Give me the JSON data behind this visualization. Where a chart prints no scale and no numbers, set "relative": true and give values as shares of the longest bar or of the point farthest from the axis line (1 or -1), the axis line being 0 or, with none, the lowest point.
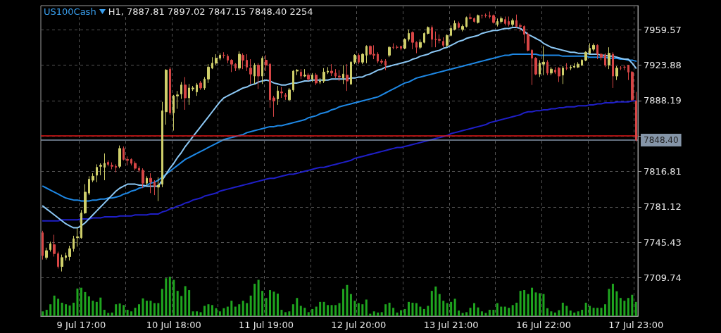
{
  "chart_data": [
    {
      "type": "candlestick",
      "title": "US100Cash",
      "subtitle": "H1, 7887.81 7897.02 7847.15 7848.40 2254",
      "categories": [
        null,
        null,
        null,
        null,
        null,
        null,
        null,
        null,
        null,
        null,
        "9 Jul 17:00",
        null,
        null,
        null,
        null,
        null,
        null,
        null,
        null,
        null,
        null,
        null,
        null,
        null,
        null,
        null,
        null,
        null,
        null,
        null,
        null,
        null,
        null,
        null,
        "10 Jul 18:00",
        null,
        null,
        null,
        null,
        null,
        null,
        null,
        null,
        null,
        null,
        null,
        null,
        null,
        null,
        null,
        null,
        null,
        null,
        null,
        null,
        null,
        null,
        null,
        "11 Jul 19:00",
        null,
        null,
        null,
        null,
        null,
        null,
        null,
        null,
        null,
        null,
        null,
        null,
        null,
        null,
        null,
        null,
        null,
        null,
        null,
        null,
        null,
        null,
        null,
        "12 Jul 20:00",
        null,
        null,
        null,
        null,
        null,
        null,
        null,
        null,
        null,
        null,
        null,
        null,
        null,
        null,
        null,
        null,
        null,
        null,
        null,
        null,
        null,
        null,
        null,
        "13 Jul 21:00",
        null,
        null,
        null,
        null,
        null,
        null,
        null,
        null,
        null,
        null,
        null,
        null,
        null,
        null,
        null,
        null,
        null,
        null,
        null,
        null,
        null,
        null,
        null,
        "16 Jul 22:00",
        null,
        null,
        null,
        null,
        null,
        null,
        null,
        null,
        null,
        null,
        null,
        null,
        null,
        null,
        null,
        null,
        null,
        null,
        null,
        null,
        null,
        null,
        null,
        "17 Jul 23:00"
      ],
      "series": [
        {
          "type": "line",
          "color": "#1f1fc8",
          "values": [
            7767,
            7767,
            7767,
            7767,
            7767,
            7768,
            7768,
            7768,
            7768,
            7768,
            7769,
            7769,
            7769,
            7770,
            7770,
            7770,
            7771,
            7771,
            7771,
            7771,
            7772,
            7772,
            7772,
            7772,
            7773,
            7773,
            7773,
            7773,
            7774,
            7774,
            7774,
            7776,
            7777,
            7779,
            7780,
            7782,
            7783,
            7785,
            7786,
            7788,
            7789,
            7790,
            7792,
            7793,
            7794,
            7795,
            7797,
            7798,
            7799,
            7800,
            7801,
            7802,
            7803,
            7804,
            7805,
            7806,
            7807,
            7808,
            7809,
            7810,
            7810,
            7811,
            7812,
            7813,
            7814,
            7814,
            7815,
            7816,
            7817,
            7818,
            7819,
            7820,
            7821,
            7821,
            7822,
            7823,
            7824,
            7825,
            7826,
            7827,
            7828,
            7830,
            7831,
            7832,
            7833,
            7834,
            7835,
            7836,
            7837,
            7838,
            7839,
            7840,
            7841,
            7841,
            7842,
            7843,
            7844,
            7845,
            7846,
            7847,
            7848,
            7849,
            7850,
            7851,
            7852,
            7853,
            7855,
            7856,
            7857,
            7858,
            7859,
            7860,
            7861,
            7862,
            7863,
            7864,
            7866,
            7867,
            7868,
            7869,
            7870,
            7871,
            7872,
            7873,
            7874,
            7876,
            7877,
            7877,
            7878,
            7878,
            7879,
            7879,
            7880,
            7880,
            7881,
            7881,
            7882,
            7882,
            7882,
            7883,
            7883,
            7883,
            7884,
            7884,
            7885,
            7885,
            7886,
            7886,
            7886,
            7887,
            7887,
            7887,
            7887,
            7888,
            7888
          ]
        },
        {
          "type": "line",
          "color": "#1e88e5",
          "values": [
            7802,
            7800,
            7798,
            7796,
            7794,
            7792,
            7790,
            7789,
            7788,
            7788,
            7787,
            7787,
            7787,
            7788,
            7788,
            7789,
            7789,
            7790,
            7790,
            7791,
            7792,
            7794,
            7795,
            7797,
            7798,
            7800,
            7801,
            7803,
            7805,
            7806,
            7808,
            7811,
            7814,
            7817,
            7820,
            7823,
            7826,
            7829,
            7831,
            7833,
            7835,
            7837,
            7839,
            7841,
            7843,
            7845,
            7847,
            7849,
            7850,
            7851,
            7852,
            7853,
            7854,
            7856,
            7857,
            7858,
            7859,
            7860,
            7861,
            7862,
            7862,
            7863,
            7863,
            7864,
            7865,
            7866,
            7867,
            7868,
            7869,
            7871,
            7872,
            7873,
            7875,
            7876,
            7877,
            7879,
            7880,
            7882,
            7883,
            7884,
            7885,
            7886,
            7887,
            7888,
            7889,
            7890,
            7891,
            7892,
            7894,
            7896,
            7898,
            7900,
            7902,
            7904,
            7906,
            7907,
            7909,
            7911,
            7912,
            7913,
            7914,
            7915,
            7916,
            7917,
            7918,
            7919,
            7920,
            7921,
            7922,
            7923,
            7924,
            7925,
            7926,
            7927,
            7928,
            7929,
            7930,
            7931,
            7932,
            7933,
            7934,
            7934,
            7935,
            7935,
            7935,
            7935,
            7935,
            7935,
            7935,
            7934,
            7934,
            7934,
            7934,
            7934,
            7934,
            7933,
            7933,
            7933,
            7933,
            7933,
            7933,
            7933,
            7932,
            7932,
            7932,
            7932,
            7932,
            7931,
            7931,
            7931,
            7930,
            7930,
            7929,
            7929,
            7928
          ]
        },
        {
          "type": "line",
          "color": "#8cc8f5",
          "values": [
            7782,
            7779,
            7776,
            7773,
            7770,
            7767,
            7764,
            7762,
            7760,
            7760,
            7762,
            7765,
            7769,
            7773,
            7777,
            7781,
            7785,
            7789,
            7793,
            7797,
            7800,
            7802,
            7804,
            7804,
            7804,
            7803,
            7803,
            7802,
            7802,
            7802,
            7802,
            7808,
            7814,
            7820,
            7825,
            7831,
            7836,
            7842,
            7847,
            7852,
            7857,
            7862,
            7867,
            7872,
            7877,
            7882,
            7887,
            7891,
            7893,
            7895,
            7897,
            7899,
            7901,
            7902,
            7904,
            7905,
            7907,
            7908,
            7909,
            7908,
            7906,
            7905,
            7904,
            7904,
            7905,
            7906,
            7906,
            7907,
            7908,
            7908,
            7909,
            7909,
            7909,
            7909,
            7909,
            7910,
            7910,
            7910,
            7910,
            7910,
            7911,
            7911,
            7912,
            7912,
            7914,
            7915,
            7917,
            7919,
            7920,
            7922,
            7923,
            7924,
            7925,
            7926,
            7927,
            7928,
            7930,
            7931,
            7933,
            7934,
            7935,
            7937,
            7938,
            7939,
            7941,
            7942,
            7944,
            7946,
            7948,
            7949,
            7951,
            7952,
            7953,
            7954,
            7956,
            7957,
            7958,
            7959,
            7959,
            7960,
            7961,
            7961,
            7962,
            7962,
            7961,
            7958,
            7955,
            7953,
            7951,
            7949,
            7946,
            7944,
            7942,
            7941,
            7940,
            7939,
            7938,
            7937,
            7937,
            7936,
            7936,
            7936,
            7935,
            7935,
            7935,
            7934,
            7934,
            7933,
            7933,
            7932,
            7931,
            7930,
            7930,
            7926,
            7921
          ]
        },
        {
          "type": "candlestick",
          "colors": [
            "#d64545",
            "#cfcf6a",
            "#cfcf6a",
            "#d64545",
            "#d64545",
            "#cfcf6a",
            "#cfcf6a",
            "#cfcf6a",
            "#cfcf6a",
            "#cfcf6a",
            "#cfcf6a",
            "#cfcf6a",
            "#cfcf6a",
            "#cfcf6a",
            "#cfcf6a",
            "#cfcf6a",
            "#cfcf6a",
            "#d64545",
            "#d64545",
            "#d64545",
            "#cfcf6a",
            "#d64545",
            "#d64545",
            "#d64545",
            "#d64545",
            "#d64545",
            "#d64545",
            "#cfcf6a",
            "#d64545",
            "#d64545",
            "#cfcf6a",
            "#cfcf6a",
            "#cfcf6a",
            "#d64545",
            "#cfcf6a",
            "#cfcf6a",
            "#cfcf6a",
            "#d64545",
            "#cfcf6a",
            "#cfcf6a",
            "#cfcf6a",
            "#d64545",
            "#cfcf6a",
            "#cfcf6a",
            "#cfcf6a",
            "#cfcf6a",
            "#cfcf6a",
            "#d64545",
            "#d64545",
            "#d64545",
            "#d64545",
            "#cfcf6a",
            "#d64545",
            "#d64545",
            "#d64545",
            "#cfcf6a",
            "#d64545",
            "#cfcf6a",
            "#d64545",
            "#d64545",
            "#d64545",
            "#cfcf6a",
            "#d64545",
            "#d64545",
            "#cfcf6a",
            "#cfcf6a",
            "#cfcf6a",
            "#d64545",
            "#cfcf6a",
            "#d64545",
            "#cfcf6a",
            "#d64545",
            "#cfcf6a",
            "#cfcf6a",
            "#cfcf6a",
            "#d64545",
            "#d64545",
            "#d64545",
            "#cfcf6a",
            "#d64545",
            "#cfcf6a",
            "#cfcf6a",
            "#d64545",
            "#cfcf6a",
            "#cfcf6a",
            "#d64545",
            "#d64545",
            "#d64545",
            "#d64545",
            "#d64545",
            "#cfcf6a",
            "#d64545",
            "#d64545",
            "#d64545",
            "#cfcf6a",
            "#cfcf6a",
            "#d64545",
            "#d64545",
            "#cfcf6a",
            "#cfcf6a",
            "#cfcf6a",
            "#d64545",
            "#d64545",
            "#d64545",
            "#d64545",
            "#cfcf6a",
            "#cfcf6a",
            "#cfcf6a",
            "#d64545",
            "#cfcf6a",
            "#cfcf6a",
            "#d64545",
            "#d64545",
            "#cfcf6a",
            "#d64545",
            "#d64545",
            "#d64545",
            "#d64545",
            "#cfcf6a",
            "#cfcf6a",
            "#d64545",
            "#d64545",
            "#cfcf6a",
            "#d64545",
            "#d64545",
            "#d64545",
            "#d64545",
            "#d64545",
            "#d64545",
            "#cfcf6a",
            "#cfcf6a",
            "#d64545",
            "#cfcf6a",
            "#d64545",
            "#d64545",
            "#cfcf6a",
            "#d64545",
            "#cfcf6a",
            "#cfcf6a",
            "#cfcf6a",
            "#cfcf6a",
            "#cfcf6a",
            "#cfcf6a",
            "#cfcf6a",
            "#d64545",
            "#d64545",
            "#d64545",
            "#cfcf6a",
            "#d64545",
            "#cfcf6a",
            "#d64545",
            "#d64545",
            "#d64545",
            "#d64545",
            "#d64545"
          ],
          "ohlc": [
            [
              7755,
              7757,
              7728,
              7732
            ],
            [
              7730,
              7740,
              7728,
              7737
            ],
            [
              7738,
              7746,
              7736,
              7744
            ],
            [
              7743,
              7753,
              7731,
              7734
            ],
            [
              7734,
              7736,
              7719,
              7721
            ],
            [
              7721,
              7733,
              7716,
              7730
            ],
            [
              7730,
              7735,
              7727,
              7732
            ],
            [
              7731,
              7742,
              7727,
              7739
            ],
            [
              7739,
              7752,
              7736,
              7749
            ],
            [
              7750,
              7760,
              7741,
              7751
            ],
            [
              7750,
              7778,
              7749,
              7775
            ],
            [
              7775,
              7804,
              7774,
              7796
            ],
            [
              7795,
              7812,
              7793,
              7809
            ],
            [
              7808,
              7815,
              7806,
              7812
            ],
            [
              7813,
              7824,
              7806,
              7821
            ],
            [
              7822,
              7825,
              7813,
              7823
            ],
            [
              7821,
              7835,
              7808,
              7825
            ],
            [
              7826,
              7828,
              7822,
              7824
            ],
            [
              7823,
              7826,
              7819,
              7822
            ],
            [
              7822,
              7824,
              7816,
              7821
            ],
            [
              7822,
              7843,
              7820,
              7840
            ],
            [
              7840,
              7842,
              7828,
              7829
            ],
            [
              7829,
              7832,
              7823,
              7828
            ],
            [
              7829,
              7830,
              7823,
              7825
            ],
            [
              7825,
              7827,
              7818,
              7820
            ],
            [
              7820,
              7822,
              7816,
              7818
            ],
            [
              7818,
              7820,
              7800,
              7805
            ],
            [
              7805,
              7812,
              7803,
              7810
            ],
            [
              7810,
              7815,
              7795,
              7806
            ],
            [
              7806,
              7808,
              7793,
              7802
            ],
            [
              7801,
              7811,
              7787,
              7803
            ],
            [
              7804,
              7887,
              7801,
              7878
            ],
            [
              7877,
              7920,
              7864,
              7919
            ],
            [
              7920,
              7922,
              7874,
              7876
            ],
            [
              7876,
              7894,
              7858,
              7893
            ],
            [
              7893,
              7898,
              7880,
              7894
            ],
            [
              7895,
              7907,
              7890,
              7904
            ],
            [
              7904,
              7912,
              7879,
              7891
            ],
            [
              7891,
              7905,
              7884,
              7901
            ],
            [
              7900,
              7903,
              7898,
              7901
            ],
            [
              7897,
              7906,
              7893,
              7904
            ],
            [
              7906,
              7908,
              7899,
              7901
            ],
            [
              7901,
              7912,
              7899,
              7910
            ],
            [
              7910,
              7925,
              7906,
              7922
            ],
            [
              7921,
              7932,
              7920,
              7926
            ],
            [
              7926,
              7935,
              7924,
              7931
            ],
            [
              7931,
              7936,
              7929,
              7934
            ],
            [
              7934,
              7937,
              7931,
              7934
            ],
            [
              7933,
              7935,
              7926,
              7929
            ],
            [
              7929,
              7930,
              7917,
              7925
            ],
            [
              7925,
              7926,
              7918,
              7921
            ],
            [
              7921,
              7938,
              7919,
              7935
            ],
            [
              7934,
              7936,
              7920,
              7929
            ],
            [
              7929,
              7935,
              7918,
              7922
            ],
            [
              7921,
              7930,
              7905,
              7915
            ],
            [
              7913,
              7926,
              7905,
              7924
            ],
            [
              7924,
              7926,
              7900,
              7913
            ],
            [
              7913,
              7933,
              7905,
              7931
            ],
            [
              7929,
              7934,
              7918,
              7924
            ],
            [
              7925,
              7926,
              7881,
              7889
            ],
            [
              7891,
              7893,
              7872,
              7888
            ],
            [
              7890,
              7903,
              7884,
              7898
            ],
            [
              7897,
              7902,
              7891,
              7896
            ],
            [
              7894,
              7896,
              7889,
              7892
            ],
            [
              7889,
              7901,
              7888,
              7899
            ],
            [
              7899,
              7919,
              7897,
              7918
            ],
            [
              7918,
              7920,
              7914,
              7919
            ],
            [
              7917,
              7920,
              7910,
              7913
            ],
            [
              7913,
              7920,
              7912,
              7914
            ],
            [
              7914,
              7916,
              7908,
              7910
            ],
            [
              7910,
              7916,
              7907,
              7914
            ],
            [
              7914,
              7916,
              7904,
              7906
            ],
            [
              7907,
              7911,
              7905,
              7908
            ],
            [
              7908,
              7921,
              7906,
              7917
            ],
            [
              7917,
              7922,
              7915,
              7918
            ],
            [
              7918,
              7925,
              7913,
              7916
            ],
            [
              7916,
              7920,
              7911,
              7913
            ],
            [
              7913,
              7919,
              7908,
              7912
            ],
            [
              7911,
              7924,
              7905,
              7915
            ],
            [
              7914,
              7925,
              7898,
              7908
            ],
            [
              7905,
              7928,
              7904,
              7927
            ],
            [
              7927,
              7935,
              7925,
              7934
            ],
            [
              7934,
              7936,
              7925,
              7927
            ],
            [
              7927,
              7936,
              7925,
              7935
            ],
            [
              7934,
              7944,
              7926,
              7943
            ],
            [
              7943,
              7944,
              7934,
              7935
            ],
            [
              7935,
              7944,
              7930,
              7934
            ],
            [
              7935,
              7937,
              7926,
              7928
            ],
            [
              7928,
              7930,
              7925,
              7927
            ],
            [
              7928,
              7930,
              7919,
              7924
            ],
            [
              7934,
              7943,
              7932,
              7942
            ],
            [
              7942,
              7946,
              7940,
              7942
            ],
            [
              7942,
              7944,
              7940,
              7942
            ],
            [
              7943,
              7943,
              7939,
              7941
            ],
            [
              7941,
              7951,
              7940,
              7950
            ],
            [
              7950,
              7960,
              7948,
              7956
            ],
            [
              7957,
              7958,
              7940,
              7947
            ],
            [
              7947,
              7948,
              7936,
              7942
            ],
            [
              7942,
              7950,
              7940,
              7947
            ],
            [
              7947,
              7957,
              7946,
              7956
            ],
            [
              7956,
              7963,
              7955,
              7962
            ],
            [
              7962,
              7964,
              7942,
              7950
            ],
            [
              7950,
              7958,
              7942,
              7950
            ],
            [
              7950,
              7955,
              7946,
              7949
            ],
            [
              7948,
              7952,
              7942,
              7944
            ],
            [
              7944,
              7955,
              7942,
              7954
            ],
            [
              7954,
              7964,
              7953,
              7961
            ],
            [
              7960,
              7969,
              7959,
              7966
            ],
            [
              7966,
              7968,
              7961,
              7962
            ],
            [
              7960,
              7965,
              7958,
              7963
            ],
            [
              7963,
              7973,
              7962,
              7972
            ],
            [
              7972,
              7976,
              7970,
              7971
            ],
            [
              7971,
              7972,
              7967,
              7968
            ],
            [
              7967,
              7975,
              7966,
              7974
            ],
            [
              7974,
              7975,
              7971,
              7974
            ],
            [
              7974,
              7976,
              7972,
              7974
            ],
            [
              7974,
              7978,
              7971,
              7973
            ],
            [
              7974,
              7975,
              7966,
              7967
            ],
            [
              7965,
              7971,
              7963,
              7968
            ],
            [
              7968,
              7973,
              7966,
              7971
            ],
            [
              7970,
              7973,
              7964,
              7966
            ],
            [
              7968,
              7973,
              7963,
              7965
            ],
            [
              7965,
              7971,
              7963,
              7969
            ],
            [
              7969,
              7975,
              7962,
              7963
            ],
            [
              7964,
              7966,
              7958,
              7963
            ],
            [
              7963,
              7964,
              7946,
              7955
            ],
            [
              7955,
              7957,
              7938,
              7939
            ],
            [
              7939,
              7940,
              7904,
              7931
            ],
            [
              7931,
              7932,
              7914,
              7915
            ],
            [
              7915,
              7929,
              7912,
              7926
            ],
            [
              7925,
              7943,
              7914,
              7927
            ],
            [
              7927,
              7929,
              7914,
              7916
            ],
            [
              7916,
              7922,
              7914,
              7920
            ],
            [
              7919,
              7922,
              7915,
              7917
            ],
            [
              7921,
              7922,
              7907,
              7913
            ],
            [
              7914,
              7923,
              7905,
              7921
            ],
            [
              7921,
              7926,
              7919,
              7921
            ],
            [
              7921,
              7924,
              7919,
              7922
            ],
            [
              7922,
              7926,
              7921,
              7923
            ],
            [
              7922,
              7927,
              7921,
              7925
            ],
            [
              7924,
              7930,
              7923,
              7929
            ],
            [
              7929,
              7938,
              7928,
              7937
            ],
            [
              7936,
              7946,
              7935,
              7941
            ],
            [
              7940,
              7946,
              7938,
              7944
            ],
            [
              7944,
              7945,
              7930,
              7935
            ],
            [
              7935,
              7936,
              7929,
              7932
            ],
            [
              7934,
              7936,
              7922,
              7924
            ],
            [
              7924,
              7942,
              7920,
              7936
            ],
            [
              7935,
              7937,
              7901,
              7913
            ],
            [
              7913,
              7923,
              7909,
              7921
            ],
            [
              7921,
              7923,
              7919,
              7921
            ],
            [
              7922,
              7924,
              7919,
              7922
            ],
            [
              7924,
              7924,
              7909,
              7917
            ],
            [
              7917,
              7918,
              7888,
              7889
            ],
            [
              7887.81,
              7897.02,
              7847.15,
              7848.4
            ]
          ]
        }
      ],
      "ylim": [
        7671,
        7984
      ],
      "yticks": [
        7709.74,
        7745.43,
        7781.12,
        7816.81,
        {
          "value": 7852.5,
          "label": null
        },
        7888.19,
        7923.88,
        7959.57
      ],
      "ref_lines": [
        {
          "axis": "y",
          "value": 7853,
          "label": null,
          "color": "#e01818"
        },
        {
          "axis": "y",
          "value": 7848.4,
          "label": "7848.40",
          "color": "#8595a8"
        }
      ],
      "grid": true,
      "line_style": "solid"
    },
    {
      "type": "bar",
      "relative": true,
      "color": "#1fa51f",
      "categories": [
        null,
        null,
        null,
        null,
        null,
        null,
        null,
        null,
        null,
        null,
        null,
        null,
        null,
        null,
        null,
        null,
        null,
        null,
        null,
        null,
        null,
        null,
        null,
        null,
        null,
        null,
        null,
        null,
        null,
        null,
        null,
        null,
        null,
        null,
        null,
        null,
        null,
        null,
        null,
        null,
        null,
        null,
        null,
        null,
        null,
        null,
        null,
        null,
        null,
        null,
        null,
        null,
        null,
        null,
        null,
        null,
        null,
        null,
        null,
        null,
        null,
        null,
        null,
        null,
        null,
        null,
        null,
        null,
        null,
        null,
        null,
        null,
        null,
        null,
        null,
        null,
        null,
        null,
        null,
        null,
        null,
        null,
        null,
        null,
        null,
        null,
        null,
        null,
        null,
        null,
        null,
        null,
        null,
        null,
        null,
        null,
        null,
        null,
        null,
        null,
        null,
        null,
        null,
        null,
        null,
        null,
        null,
        null,
        null,
        null,
        null,
        null,
        null,
        null,
        null,
        null,
        null,
        null,
        null,
        null,
        null,
        null,
        null,
        null,
        null,
        null,
        null,
        null,
        null,
        null,
        null,
        null,
        null,
        null,
        null,
        null,
        null,
        null,
        null,
        null,
        null,
        null,
        null,
        null,
        null,
        null,
        null,
        null,
        null,
        null,
        null,
        null,
        null,
        null,
        null
      ],
      "values": [
        0.12,
        0.16,
        0.3,
        0.52,
        0.44,
        0.34,
        0.3,
        0.27,
        0.34,
        0.7,
        0.72,
        0.61,
        0.5,
        0.39,
        0.36,
        0.47,
        0.16,
        0.08,
        0.09,
        0.3,
        0.32,
        0.28,
        0.16,
        0.12,
        0.21,
        0.3,
        0.45,
        0.39,
        0.39,
        0.33,
        0.33,
        0.69,
        0.96,
        1,
        0.92,
        0.64,
        0.51,
        0.76,
        0.66,
        0.12,
        0.12,
        0.1,
        0.26,
        0.3,
        0.28,
        0.2,
        0.12,
        0.2,
        0.24,
        0.39,
        0.24,
        0.3,
        0.39,
        0.33,
        0.52,
        0.82,
        0.92,
        0.64,
        0.46,
        0.66,
        0.62,
        0.57,
        0.16,
        0.1,
        0.12,
        0.3,
        0.46,
        0.26,
        0.21,
        0.1,
        0.18,
        0.24,
        0.36,
        0.36,
        0.28,
        0.28,
        0.28,
        0.33,
        0.69,
        0.79,
        0.56,
        0.39,
        0.33,
        0.3,
        0.42,
        0.06,
        0.12,
        0.09,
        0.1,
        0.3,
        0.34,
        0.21,
        0.09,
        0.15,
        0.18,
        0.36,
        0.34,
        0.33,
        0.24,
        0.18,
        0.26,
        0.64,
        0.75,
        0.56,
        0.39,
        0.33,
        0.36,
        0.44,
        0.14,
        0.08,
        0.1,
        0.21,
        0.33,
        0.22,
        0.12,
        0.08,
        0.16,
        0.16,
        0.33,
        0.24,
        0.24,
        0.21,
        0.28,
        0.34,
        0.64,
        0.66,
        0.56,
        0.72,
        0.6,
        0.58,
        0.56,
        0.2,
        0.12,
        0.09,
        0.15,
        0.34,
        0.26,
        0.14,
        0.09,
        0.12,
        0.16,
        0.34,
        0.26,
        0.21,
        0.21,
        0.21,
        0.3,
        0.69,
        0.82,
        0.63,
        0.46,
        0.39,
        0.46,
        0.54,
        0.36
      ]
    }
  ]
}
